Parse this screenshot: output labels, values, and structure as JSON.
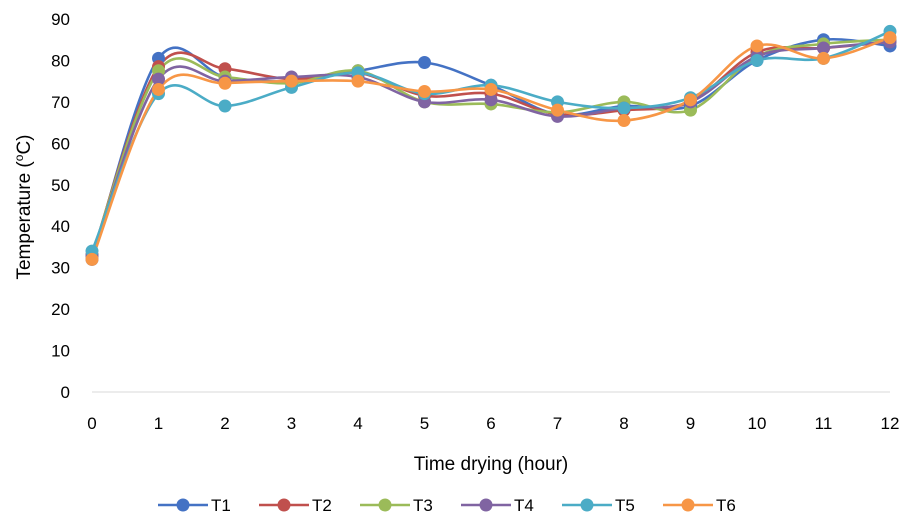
{
  "chart_data": {
    "type": "line",
    "title": "",
    "xlabel": "Time drying (hour)",
    "ylabel_main": "Temperature (",
    "ylabel_super": "o",
    "ylabel_tail": "C)",
    "x": [
      0,
      1,
      2,
      3,
      4,
      5,
      6,
      7,
      8,
      9,
      10,
      11,
      12
    ],
    "xlim": [
      0,
      12
    ],
    "ylim": [
      0,
      90
    ],
    "yticks": [
      0,
      10,
      20,
      30,
      40,
      50,
      60,
      70,
      80,
      90
    ],
    "grid": false,
    "smooth": true,
    "legend_position": "bottom",
    "series": [
      {
        "name": "T1",
        "color": "#4472C4",
        "values": [
          32,
          80.5,
          76,
          75,
          77.5,
          79.5,
          74,
          67,
          69,
          69,
          80,
          85,
          83.5
        ]
      },
      {
        "name": "T2",
        "color": "#C0504D",
        "values": [
          33,
          78.5,
          78,
          75.5,
          77,
          71.5,
          72,
          67,
          68,
          70,
          82,
          83,
          84.5
        ]
      },
      {
        "name": "T3",
        "color": "#9BBB59",
        "values": [
          33,
          77.5,
          76,
          74.5,
          77.5,
          70,
          69.5,
          67.5,
          70,
          68,
          81,
          84,
          85
        ]
      },
      {
        "name": "T4",
        "color": "#8064A2",
        "values": [
          33,
          75.5,
          75,
          76,
          76,
          70,
          70.5,
          66.5,
          68.5,
          70,
          81,
          83,
          84.5
        ]
      },
      {
        "name": "T5",
        "color": "#4BACC6",
        "values": [
          34,
          72,
          69,
          73.5,
          77,
          72,
          74,
          70,
          68.5,
          71,
          80,
          80.5,
          87
        ]
      },
      {
        "name": "T6",
        "color": "#F79646",
        "values": [
          32,
          73,
          74.5,
          75,
          75,
          72.5,
          73,
          68,
          65.5,
          70.5,
          83.5,
          80.5,
          85.5
        ]
      }
    ]
  }
}
